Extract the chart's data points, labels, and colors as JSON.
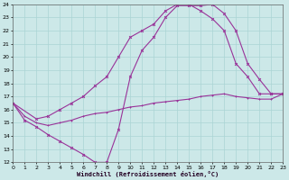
{
  "xlabel": "Windchill (Refroidissement éolien,°C)",
  "background_color": "#cce8e8",
  "grid_color": "#aad4d4",
  "line_color": "#993399",
  "xmin": 0,
  "xmax": 23,
  "ymin": 12,
  "ymax": 24,
  "line1_x": [
    0,
    1,
    2,
    3,
    4,
    5,
    6,
    7,
    8,
    9,
    10,
    11,
    12,
    13,
    14,
    15,
    16,
    17,
    18,
    19,
    20,
    21,
    22,
    23
  ],
  "line1_y": [
    16.5,
    15.2,
    14.7,
    14.1,
    13.6,
    13.1,
    12.6,
    12.0,
    12.0,
    14.5,
    18.5,
    20.5,
    21.5,
    23.0,
    23.9,
    23.9,
    23.9,
    24.0,
    23.3,
    22.0,
    19.5,
    18.3,
    17.2,
    17.2
  ],
  "line2_x": [
    0,
    2,
    3,
    4,
    5,
    6,
    7,
    8,
    9,
    10,
    11,
    12,
    13,
    14,
    15,
    16,
    17,
    18,
    19,
    20,
    21,
    22,
    23
  ],
  "line2_y": [
    16.5,
    15.3,
    15.5,
    16.0,
    16.5,
    17.0,
    17.8,
    18.5,
    20.0,
    21.5,
    22.0,
    22.5,
    23.5,
    24.0,
    24.0,
    23.5,
    22.9,
    22.0,
    19.5,
    18.5,
    17.2,
    17.2,
    17.2
  ],
  "line3_x": [
    0,
    1,
    2,
    3,
    4,
    5,
    6,
    7,
    8,
    9,
    10,
    11,
    12,
    13,
    14,
    15,
    16,
    17,
    18,
    19,
    20,
    21,
    22,
    23
  ],
  "line3_y": [
    16.5,
    15.5,
    15.0,
    14.8,
    15.0,
    15.2,
    15.5,
    15.7,
    15.8,
    16.0,
    16.2,
    16.3,
    16.5,
    16.6,
    16.7,
    16.8,
    17.0,
    17.1,
    17.2,
    17.0,
    16.9,
    16.8,
    16.8,
    17.2
  ]
}
